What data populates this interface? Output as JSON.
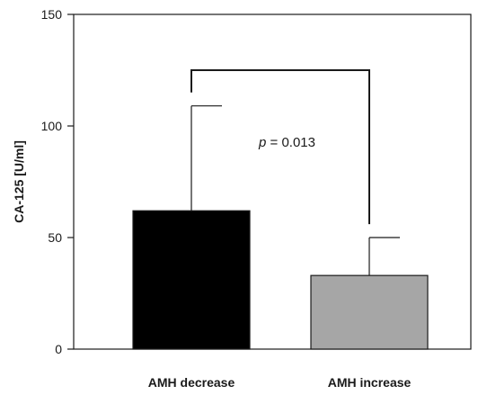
{
  "chart_data": {
    "type": "bar",
    "categories": [
      "AMH decrease",
      "AMH increase"
    ],
    "values": [
      62,
      33
    ],
    "error_upper": [
      109,
      50
    ],
    "colors": [
      "#000000",
      "#a6a6a6"
    ],
    "ylabel": "CA-125 [U/ml]",
    "ylim": [
      0,
      150
    ],
    "yticks": [
      0,
      50,
      100,
      150
    ],
    "annotation": {
      "p_symbol": "p",
      "p_text": " = 0.013"
    },
    "grid": false
  }
}
